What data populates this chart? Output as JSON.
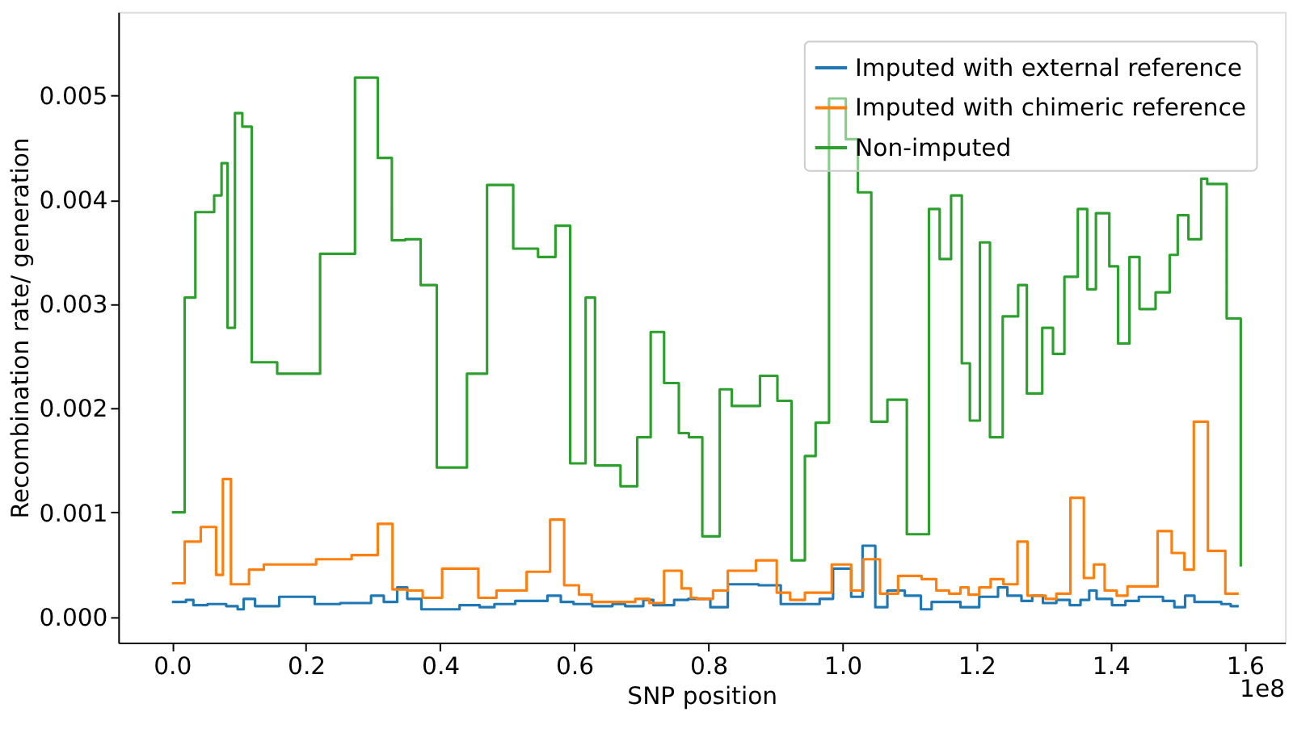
{
  "chart_data": {
    "type": "step",
    "xlabel": "SNP position",
    "ylabel": "Recombination rate/ generation",
    "annotations": [
      "1e8"
    ],
    "xlim": [
      -0.08,
      1.66
    ],
    "ylim": [
      -0.00025,
      0.0058
    ],
    "xticks": [
      {
        "value": 0,
        "label": "0.0"
      },
      {
        "value": 0.2,
        "label": "0.2"
      },
      {
        "value": 0.4,
        "label": "0.4"
      },
      {
        "value": 0.6,
        "label": "0.6"
      },
      {
        "value": 0.8,
        "label": "0.8"
      },
      {
        "value": 1.0,
        "label": "1.0"
      },
      {
        "value": 1.2,
        "label": "1.2"
      },
      {
        "value": 1.4,
        "label": "1.4"
      },
      {
        "value": 1.6,
        "label": "1.6"
      }
    ],
    "yticks": [
      {
        "value": 0,
        "label": "0.000"
      },
      0.001,
      0.002,
      0.003,
      0.004,
      0.005
    ],
    "grid": false,
    "legend": "top right",
    "line_style": "solid",
    "series": [
      {
        "name": "Imputed with external reference",
        "color": "#1f77b4",
        "x": [
          0,
          0.021,
          0.032,
          0.053,
          0.081,
          0.098,
          0.107,
          0.124,
          0.16,
          0.213,
          0.251,
          0.297,
          0.316,
          0.336,
          0.351,
          0.372,
          0.429,
          0.459,
          0.481,
          0.512,
          0.56,
          0.58,
          0.599,
          0.627,
          0.657,
          0.676,
          0.703,
          0.718,
          0.749,
          0.77,
          0.803,
          0.829,
          0.875,
          0.908,
          0.966,
          0.986,
          1.013,
          1.03,
          1.049,
          1.067,
          1.093,
          1.117,
          1.133,
          1.176,
          1.204,
          1.232,
          1.246,
          1.267,
          1.283,
          1.299,
          1.319,
          1.339,
          1.355,
          1.368,
          1.379,
          1.402,
          1.422,
          1.442,
          1.478,
          1.495,
          1.511,
          1.525,
          1.565,
          1.579,
          1.591
        ],
        "values": [
          0.00014,
          0.00016,
          0.00011,
          0.00012,
          0.0001,
          7e-05,
          0.00017,
          0.0001,
          0.00019,
          0.00012,
          0.00013,
          0.0002,
          0.00014,
          0.00028,
          0.00017,
          7e-05,
          0.00011,
          9e-05,
          0.00012,
          0.00015,
          0.0002,
          0.00014,
          0.00012,
          0.0001,
          0.00012,
          0.0001,
          0.00016,
          0.00011,
          0.00016,
          0.00017,
          9e-05,
          0.00031,
          0.0003,
          0.00012,
          0.00017,
          0.00046,
          0.00019,
          0.00068,
          9e-05,
          0.00025,
          0.0002,
          7e-05,
          0.00014,
          9e-05,
          0.00019,
          0.00028,
          0.0002,
          0.00015,
          0.0002,
          0.00013,
          0.00016,
          0.00011,
          0.00016,
          0.00025,
          0.00017,
          0.00011,
          0.00015,
          0.00019,
          0.00015,
          9e-05,
          0.0002,
          0.00014,
          0.00012,
          0.0001,
          0.0001
        ]
      },
      {
        "name": "Imputed with chimeric reference",
        "color": "#ff7f0e",
        "x": [
          0,
          0.019,
          0.043,
          0.066,
          0.076,
          0.088,
          0.115,
          0.137,
          0.215,
          0.268,
          0.307,
          0.329,
          0.351,
          0.374,
          0.403,
          0.457,
          0.484,
          0.529,
          0.564,
          0.585,
          0.607,
          0.626,
          0.691,
          0.712,
          0.734,
          0.76,
          0.774,
          0.783,
          0.807,
          0.829,
          0.871,
          0.902,
          0.922,
          0.944,
          0.984,
          1.013,
          1.031,
          1.056,
          1.083,
          1.118,
          1.14,
          1.159,
          1.176,
          1.188,
          1.204,
          1.221,
          1.24,
          1.261,
          1.276,
          1.303,
          1.319,
          1.34,
          1.36,
          1.375,
          1.391,
          1.409,
          1.425,
          1.47,
          1.491,
          1.51,
          1.524,
          1.545,
          1.571,
          1.591
        ],
        "values": [
          0.00032,
          0.00072,
          0.00086,
          0.0004,
          0.00132,
          0.00031,
          0.00045,
          0.0005,
          0.00055,
          0.00059,
          0.00089,
          0.00026,
          0.00025,
          0.00018,
          0.00046,
          0.00018,
          0.00025,
          0.00043,
          0.00093,
          0.0003,
          0.00021,
          0.00014,
          0.00017,
          0.00013,
          0.00044,
          0.00027,
          0.00018,
          0.00017,
          0.00025,
          0.00044,
          0.00054,
          0.00023,
          0.00016,
          0.00023,
          0.0005,
          0.00025,
          0.00055,
          0.00022,
          0.00039,
          0.00036,
          0.00025,
          0.00022,
          0.00028,
          0.00021,
          0.00028,
          0.00036,
          0.00031,
          0.00072,
          0.0002,
          0.00017,
          0.00022,
          0.00114,
          0.00037,
          0.0005,
          0.00025,
          0.0002,
          0.00029,
          0.00082,
          0.00061,
          0.00045,
          0.00187,
          0.00063,
          0.00022,
          0.00022
        ]
      },
      {
        "name": "Non-imputed",
        "color": "#2ca02c",
        "x": [
          0,
          0.019,
          0.035,
          0.063,
          0.074,
          0.083,
          0.094,
          0.105,
          0.119,
          0.157,
          0.221,
          0.273,
          0.307,
          0.328,
          0.348,
          0.371,
          0.395,
          0.44,
          0.47,
          0.509,
          0.546,
          0.572,
          0.594,
          0.617,
          0.631,
          0.669,
          0.694,
          0.714,
          0.734,
          0.756,
          0.771,
          0.791,
          0.817,
          0.835,
          0.877,
          0.903,
          0.924,
          0.944,
          0.96,
          0.98,
          1.005,
          1.023,
          1.043,
          1.067,
          1.096,
          1.129,
          1.145,
          1.162,
          1.178,
          1.19,
          1.205,
          1.22,
          1.239,
          1.262,
          1.275,
          1.298,
          1.314,
          1.331,
          1.351,
          1.365,
          1.378,
          1.398,
          1.411,
          1.428,
          1.443,
          1.467,
          1.488,
          1.5,
          1.516,
          1.535,
          1.544,
          1.573,
          1.594
        ],
        "values": [
          0.001,
          0.00306,
          0.00388,
          0.00404,
          0.00435,
          0.00277,
          0.00483,
          0.0047,
          0.00244,
          0.00233,
          0.00348,
          0.00517,
          0.0044,
          0.00361,
          0.00362,
          0.00318,
          0.00143,
          0.00233,
          0.00414,
          0.00353,
          0.00345,
          0.00375,
          0.00147,
          0.00306,
          0.00145,
          0.00125,
          0.00172,
          0.00273,
          0.00224,
          0.00176,
          0.00172,
          0.00077,
          0.00218,
          0.00202,
          0.00231,
          0.00207,
          0.00054,
          0.00154,
          0.00186,
          0.00497,
          0.00458,
          0.00407,
          0.00187,
          0.00208,
          0.00079,
          0.00391,
          0.00343,
          0.00404,
          0.00243,
          0.00188,
          0.00359,
          0.00172,
          0.00288,
          0.00318,
          0.00214,
          0.00277,
          0.00252,
          0.00326,
          0.00391,
          0.00314,
          0.00387,
          0.00336,
          0.00262,
          0.00345,
          0.00295,
          0.00311,
          0.00347,
          0.00385,
          0.00362,
          0.0042,
          0.00415,
          0.00286,
          0.00048
        ]
      }
    ]
  }
}
